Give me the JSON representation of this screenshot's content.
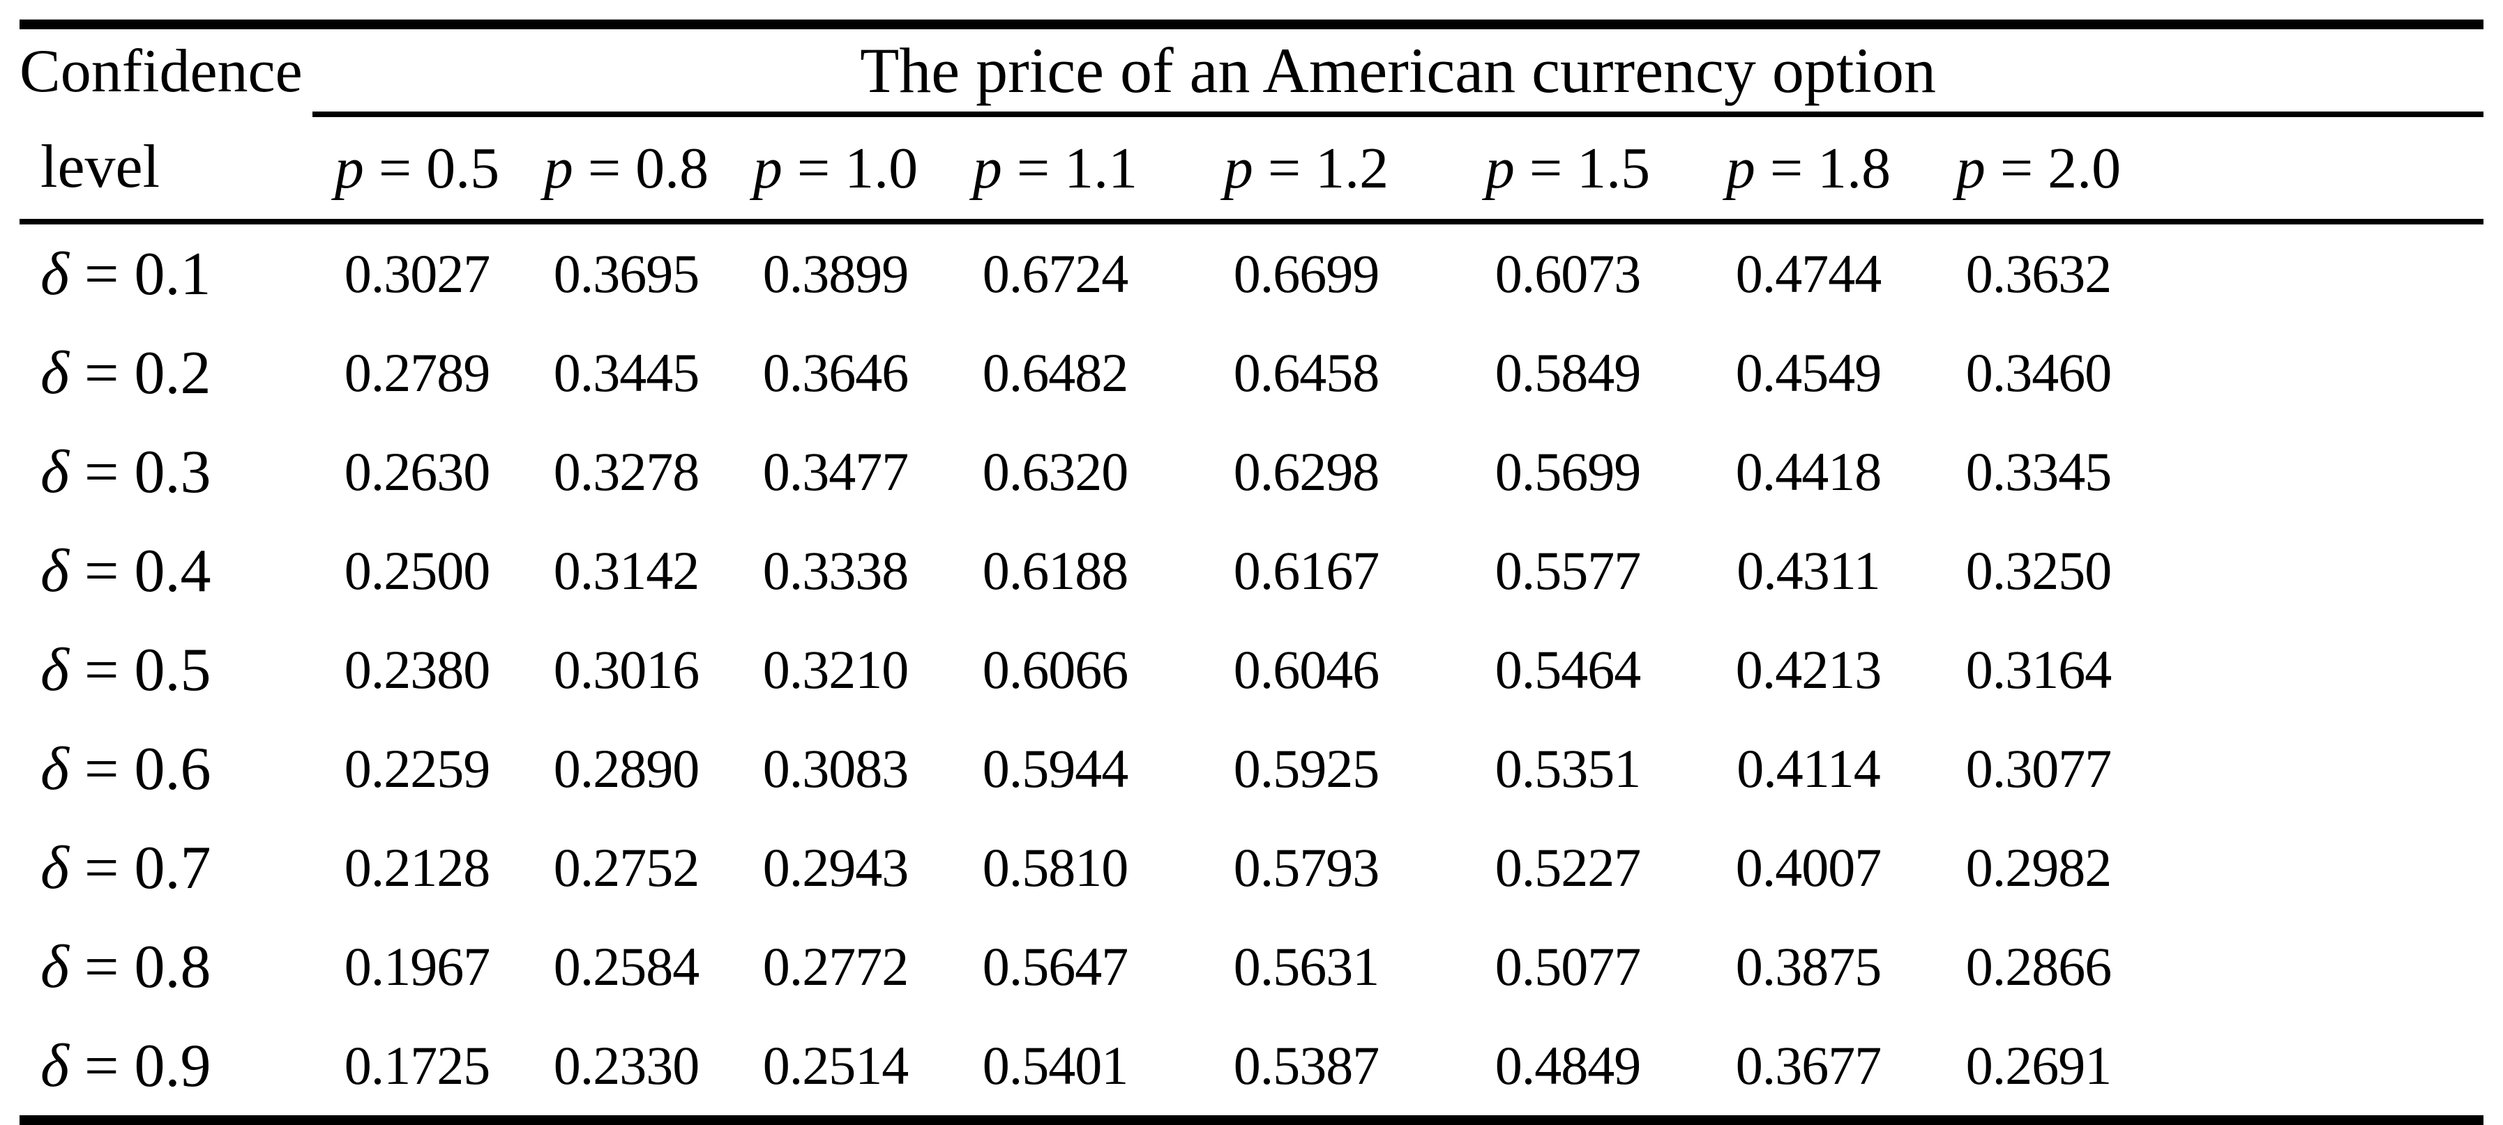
{
  "table": {
    "corner_header": {
      "line1": "Confidence",
      "line2": "level"
    },
    "span_header": "The price of an American currency option",
    "col_var": "p",
    "row_var": "δ",
    "columns": [
      "0.5",
      "0.8",
      "1.0",
      "1.1",
      "1.2",
      "1.5",
      "1.8",
      "2.0"
    ],
    "rows": [
      {
        "delta": "0.1",
        "values": [
          "0.3027",
          "0.3695",
          "0.3899",
          "0.6724",
          "0.6699",
          "0.6073",
          "0.4744",
          "0.3632"
        ]
      },
      {
        "delta": "0.2",
        "values": [
          "0.2789",
          "0.3445",
          "0.3646",
          "0.6482",
          "0.6458",
          "0.5849",
          "0.4549",
          "0.3460"
        ]
      },
      {
        "delta": "0.3",
        "values": [
          "0.2630",
          "0.3278",
          "0.3477",
          "0.6320",
          "0.6298",
          "0.5699",
          "0.4418",
          "0.3345"
        ]
      },
      {
        "delta": "0.4",
        "values": [
          "0.2500",
          "0.3142",
          "0.3338",
          "0.6188",
          "0.6167",
          "0.5577",
          "0.4311",
          "0.3250"
        ]
      },
      {
        "delta": "0.5",
        "values": [
          "0.2380",
          "0.3016",
          "0.3210",
          "0.6066",
          "0.6046",
          "0.5464",
          "0.4213",
          "0.3164"
        ]
      },
      {
        "delta": "0.6",
        "values": [
          "0.2259",
          "0.2890",
          "0.3083",
          "0.5944",
          "0.5925",
          "0.5351",
          "0.4114",
          "0.3077"
        ]
      },
      {
        "delta": "0.7",
        "values": [
          "0.2128",
          "0.2752",
          "0.2943",
          "0.5810",
          "0.5793",
          "0.5227",
          "0.4007",
          "0.2982"
        ]
      },
      {
        "delta": "0.8",
        "values": [
          "0.1967",
          "0.2584",
          "0.2772",
          "0.5647",
          "0.5631",
          "0.5077",
          "0.3875",
          "0.2866"
        ]
      },
      {
        "delta": "0.9",
        "values": [
          "0.1725",
          "0.2330",
          "0.2514",
          "0.5401",
          "0.5387",
          "0.4849",
          "0.3677",
          "0.2691"
        ]
      }
    ]
  },
  "colors": {
    "text": "#000000",
    "background": "#ffffff",
    "rule": "#000000"
  }
}
